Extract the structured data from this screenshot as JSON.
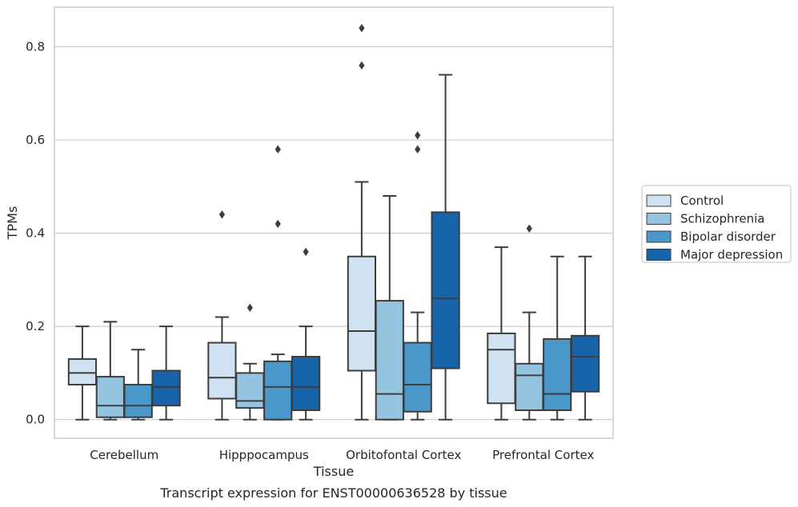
{
  "chart_data": {
    "type": "box",
    "caption": "Transcript expression for ENST00000636528 by tissue",
    "xlabel": "Tissue",
    "ylabel": "TPMs",
    "ylim": [
      -0.04,
      0.885
    ],
    "yticks": [
      0.0,
      0.2,
      0.4,
      0.6,
      0.8
    ],
    "ytick_labels": [
      "0.0",
      "0.2",
      "0.4",
      "0.6",
      "0.8"
    ],
    "grid": "horizontal",
    "legend_placement": "right",
    "categories": [
      "Cerebellum",
      "Hipppocampus",
      "Orbitofontal Cortex",
      "Prefrontal Cortex"
    ],
    "series": [
      {
        "name": "Control",
        "color": "#d0e1f2",
        "boxes": [
          {
            "min": 0.0,
            "q1": 0.075,
            "median": 0.1,
            "q3": 0.13,
            "max": 0.2,
            "outliers": []
          },
          {
            "min": 0.0,
            "q1": 0.045,
            "median": 0.09,
            "q3": 0.165,
            "max": 0.22,
            "outliers": [
              0.44
            ]
          },
          {
            "min": 0.0,
            "q1": 0.105,
            "median": 0.19,
            "q3": 0.35,
            "max": 0.51,
            "outliers": [
              0.76,
              0.84
            ]
          },
          {
            "min": 0.0,
            "q1": 0.035,
            "median": 0.15,
            "q3": 0.185,
            "max": 0.37,
            "outliers": []
          }
        ]
      },
      {
        "name": "Schizophrenia",
        "color": "#94c4df",
        "boxes": [
          {
            "min": 0.0,
            "q1": 0.005,
            "median": 0.03,
            "q3": 0.092,
            "max": 0.21,
            "outliers": []
          },
          {
            "min": 0.0,
            "q1": 0.025,
            "median": 0.04,
            "q3": 0.1,
            "max": 0.12,
            "outliers": [
              0.24
            ]
          },
          {
            "min": 0.0,
            "q1": 0.0,
            "median": 0.055,
            "q3": 0.255,
            "max": 0.48,
            "outliers": []
          },
          {
            "min": 0.0,
            "q1": 0.02,
            "median": 0.095,
            "q3": 0.12,
            "max": 0.23,
            "outliers": [
              0.41
            ]
          }
        ]
      },
      {
        "name": "Bipolar disorder",
        "color": "#4a98c9",
        "boxes": [
          {
            "min": 0.0,
            "q1": 0.005,
            "median": 0.03,
            "q3": 0.075,
            "max": 0.15,
            "outliers": []
          },
          {
            "min": 0.0,
            "q1": 0.0,
            "median": 0.07,
            "q3": 0.125,
            "max": 0.14,
            "outliers": [
              0.42,
              0.58
            ]
          },
          {
            "min": 0.0,
            "q1": 0.017,
            "median": 0.075,
            "q3": 0.165,
            "max": 0.23,
            "outliers": [
              0.58,
              0.61
            ]
          },
          {
            "min": 0.0,
            "q1": 0.02,
            "median": 0.055,
            "q3": 0.173,
            "max": 0.35,
            "outliers": []
          }
        ]
      },
      {
        "name": "Major depression",
        "color": "#1764ab",
        "boxes": [
          {
            "min": 0.0,
            "q1": 0.03,
            "median": 0.07,
            "q3": 0.105,
            "max": 0.2,
            "outliers": []
          },
          {
            "min": 0.0,
            "q1": 0.02,
            "median": 0.07,
            "q3": 0.135,
            "max": 0.2,
            "outliers": [
              0.36
            ]
          },
          {
            "min": 0.0,
            "q1": 0.11,
            "median": 0.26,
            "q3": 0.445,
            "max": 0.74,
            "outliers": []
          },
          {
            "min": 0.0,
            "q1": 0.06,
            "median": 0.135,
            "q3": 0.18,
            "max": 0.35,
            "outliers": []
          }
        ]
      }
    ]
  }
}
